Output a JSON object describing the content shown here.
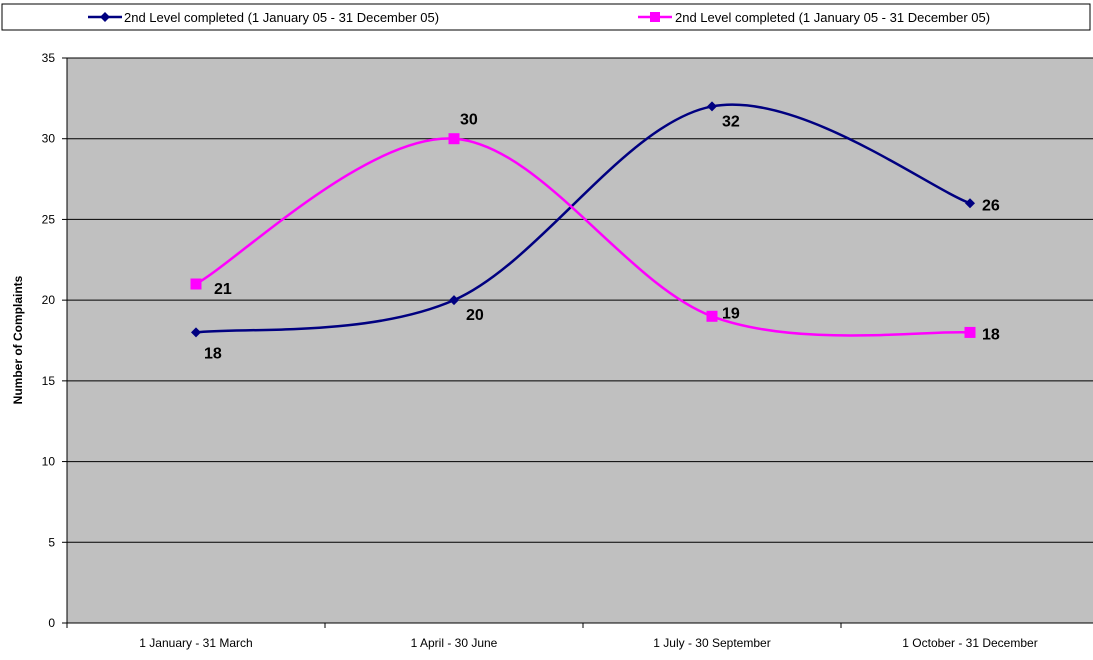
{
  "chart_data": {
    "type": "line",
    "title": "",
    "xlabel": "",
    "ylabel": "Number of Complaints",
    "ylim": [
      0,
      35
    ],
    "yticks": [
      0,
      5,
      10,
      15,
      20,
      25,
      30,
      35
    ],
    "grid": true,
    "smooth": true,
    "legend_position": "top",
    "plot_background": "#c0c0c0",
    "categories": [
      "1 January - 31 March",
      "1 April - 30 June",
      "1 July - 30 September",
      "1 October - 31 December"
    ],
    "series": [
      {
        "name": "2nd Level completed (1 January 05 - 31 December 05)",
        "color": "#000080",
        "marker": "diamond",
        "values": [
          18,
          20,
          32,
          26
        ]
      },
      {
        "name": "2nd Level completed (1 January 05 - 31 December 05)",
        "color": "#ff00ff",
        "marker": "square",
        "values": [
          21,
          30,
          19,
          18
        ]
      }
    ]
  }
}
